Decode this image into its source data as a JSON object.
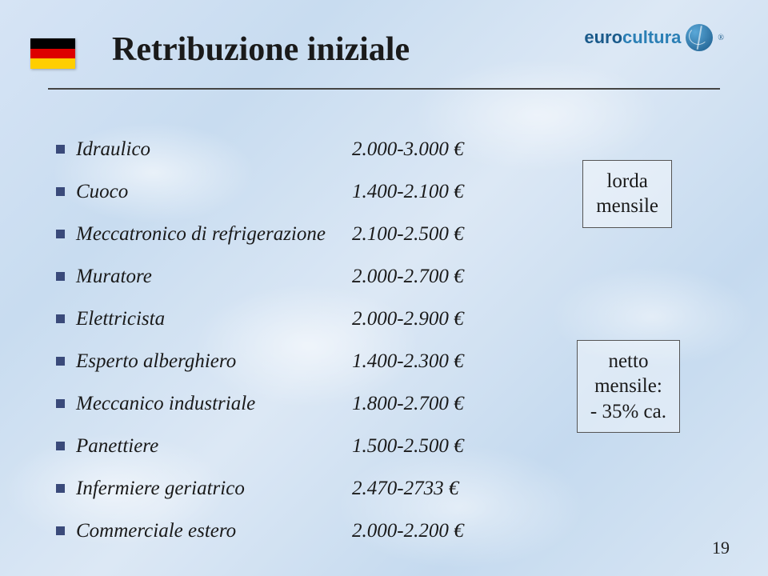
{
  "title": "Retribuzione iniziale",
  "logo": {
    "brand_a": "euro",
    "brand_b": "cultura",
    "reg": "®"
  },
  "flag": {
    "colors": [
      "#000000",
      "#dd0000",
      "#ffce00"
    ]
  },
  "jobs": [
    {
      "label": "Idraulico",
      "value": "2.000-3.000 €"
    },
    {
      "label": "Cuoco",
      "value": "1.400-2.100 €"
    },
    {
      "label": "Meccatronico di refrigerazione",
      "value": "2.100-2.500 €"
    },
    {
      "label": "Muratore",
      "value": "2.000-2.700 €"
    },
    {
      "label": "Elettricista",
      "value": "2.000-2.900 €"
    },
    {
      "label": "Esperto alberghiero",
      "value": "1.400-2.300 €"
    },
    {
      "label": "Meccanico industriale",
      "value": "1.800-2.700 €"
    },
    {
      "label": "Panettiere",
      "value": "1.500-2.500 €"
    },
    {
      "label": "Infermiere geriatrico",
      "value": "2.470-2733 €"
    },
    {
      "label": "Commerciale estero",
      "value": "2.000-2.200 €"
    }
  ],
  "notes": {
    "gross": "lorda\nmensile",
    "net": "netto\nmensile:\n- 35% ca."
  },
  "page_number": "19",
  "style": {
    "bullet_color": "#3a4a7a",
    "title_fontsize": 42,
    "body_fontsize": 25,
    "background_gradient": [
      "#d6e4f5",
      "#c8dcf0",
      "#dce8f5",
      "#c5daef",
      "#d8e6f4"
    ],
    "underline_color": "#444444"
  }
}
